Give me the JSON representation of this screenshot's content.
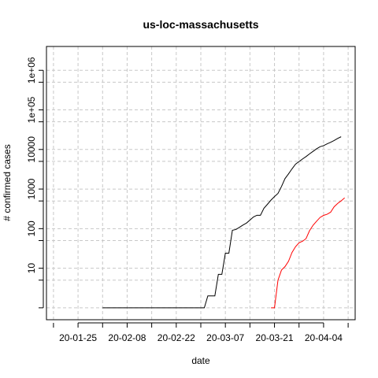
{
  "chart_data": {
    "type": "line",
    "title": "us-loc-massachusetts",
    "xlabel": "date",
    "ylabel": "# confirmed cases",
    "y_scale": "log",
    "ylim": [
      0.5,
      4000000
    ],
    "xlim": [
      "2020-01-16",
      "2020-04-13"
    ],
    "grid": true,
    "x_ticks": [
      {
        "date": "2020-01-25",
        "label": "20-01-25"
      },
      {
        "date": "2020-02-08",
        "label": "20-02-08"
      },
      {
        "date": "2020-02-22",
        "label": "20-02-22"
      },
      {
        "date": "2020-03-07",
        "label": "20-03-07"
      },
      {
        "date": "2020-03-21",
        "label": "20-03-21"
      },
      {
        "date": "2020-04-04",
        "label": "20-04-04"
      }
    ],
    "y_ticks": [
      {
        "value": 10,
        "label": "10"
      },
      {
        "value": 100,
        "label": "100"
      },
      {
        "value": 1000,
        "label": "1000"
      },
      {
        "value": 10000,
        "label": "10000"
      },
      {
        "value": 100000,
        "label": "1e+05"
      },
      {
        "value": 1000000,
        "label": "1e+06"
      }
    ],
    "series": [
      {
        "color": "#000000",
        "points": [
          [
            "2020-02-01",
            1
          ],
          [
            "2020-03-01",
            1
          ],
          [
            "2020-03-02",
            2
          ],
          [
            "2020-03-04",
            2
          ],
          [
            "2020-03-05",
            7
          ],
          [
            "2020-03-06",
            7
          ],
          [
            "2020-03-07",
            24
          ],
          [
            "2020-03-08",
            24
          ],
          [
            "2020-03-09",
            91
          ],
          [
            "2020-03-10",
            95
          ],
          [
            "2020-03-11",
            108
          ],
          [
            "2020-03-12",
            123
          ],
          [
            "2020-03-13",
            138
          ],
          [
            "2020-03-14",
            164
          ],
          [
            "2020-03-15",
            197
          ],
          [
            "2020-03-16",
            218
          ],
          [
            "2020-03-17",
            218
          ],
          [
            "2020-03-18",
            328
          ],
          [
            "2020-03-19",
            413
          ],
          [
            "2020-03-20",
            525
          ],
          [
            "2020-03-21",
            646
          ],
          [
            "2020-03-22",
            777
          ],
          [
            "2020-03-23",
            1159
          ],
          [
            "2020-03-24",
            1838
          ],
          [
            "2020-03-25",
            2417
          ],
          [
            "2020-03-26",
            3240
          ],
          [
            "2020-03-27",
            4257
          ],
          [
            "2020-03-28",
            4955
          ],
          [
            "2020-03-29",
            5752
          ],
          [
            "2020-03-30",
            6620
          ],
          [
            "2020-03-31",
            7738
          ],
          [
            "2020-04-01",
            8966
          ],
          [
            "2020-04-02",
            10402
          ],
          [
            "2020-04-03",
            11736
          ],
          [
            "2020-04-04",
            12500
          ],
          [
            "2020-04-05",
            13837
          ],
          [
            "2020-04-06",
            15202
          ],
          [
            "2020-04-07",
            16790
          ],
          [
            "2020-04-08",
            18941
          ],
          [
            "2020-04-09",
            20974
          ]
        ]
      },
      {
        "color": "#ff0000",
        "points": [
          [
            "2020-03-20",
            1
          ],
          [
            "2020-03-21",
            1
          ],
          [
            "2020-03-22",
            5
          ],
          [
            "2020-03-23",
            9
          ],
          [
            "2020-03-24",
            11
          ],
          [
            "2020-03-25",
            15
          ],
          [
            "2020-03-26",
            25
          ],
          [
            "2020-03-27",
            35
          ],
          [
            "2020-03-28",
            44
          ],
          [
            "2020-03-29",
            48
          ],
          [
            "2020-03-30",
            56
          ],
          [
            "2020-03-31",
            89
          ],
          [
            "2020-04-01",
            122
          ],
          [
            "2020-04-02",
            154
          ],
          [
            "2020-04-03",
            192
          ],
          [
            "2020-04-04",
            216
          ],
          [
            "2020-04-05",
            231
          ],
          [
            "2020-04-06",
            260
          ],
          [
            "2020-04-07",
            356
          ],
          [
            "2020-04-08",
            433
          ],
          [
            "2020-04-09",
            503
          ],
          [
            "2020-04-10",
            599
          ]
        ]
      }
    ]
  }
}
